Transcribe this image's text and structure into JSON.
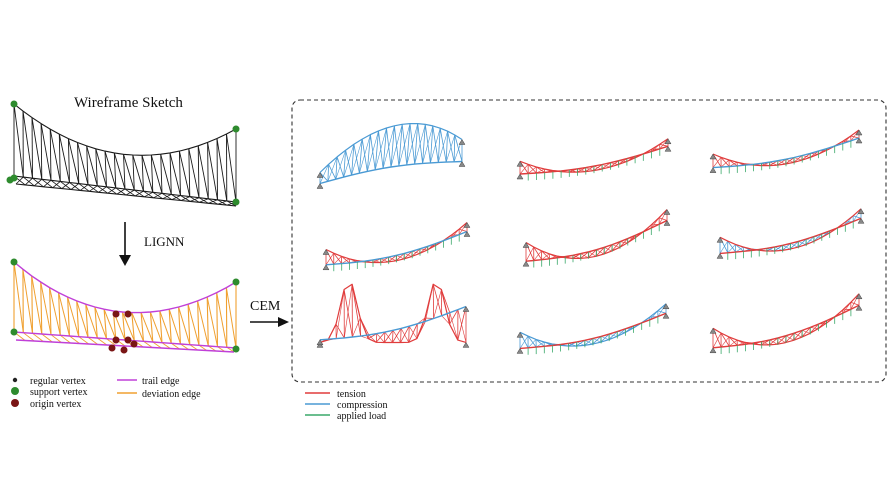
{
  "sketch_title": "Wireframe Sketch",
  "lignn_label": "LIGNN",
  "cem_label": "CEM",
  "left_legend": [
    {
      "label": "regular vertex",
      "color": "#222222",
      "kind": "dot-small"
    },
    {
      "label": "support vertex",
      "color": "#2e8b2e",
      "kind": "dot"
    },
    {
      "label": "origin vertex",
      "color": "#7a1515",
      "kind": "dot"
    },
    {
      "label": "trail edge",
      "color": "#c040d8",
      "kind": "line"
    },
    {
      "label": "deviation edge",
      "color": "#f0a030",
      "kind": "line"
    }
  ],
  "result_legend": [
    {
      "label": "tension",
      "color": "#e03c3c"
    },
    {
      "label": "compression",
      "color": "#4a9ad4"
    },
    {
      "label": "applied load",
      "color": "#3aa86a"
    }
  ],
  "colors": {
    "tension": "#e03c3c",
    "compression": "#4a9ad4",
    "load": "#3aa86a",
    "wire": "#1a1a1a",
    "trail": "#c040d8",
    "deviation": "#f0a030",
    "support": "#2e8b2e",
    "origin": "#7a1515"
  }
}
